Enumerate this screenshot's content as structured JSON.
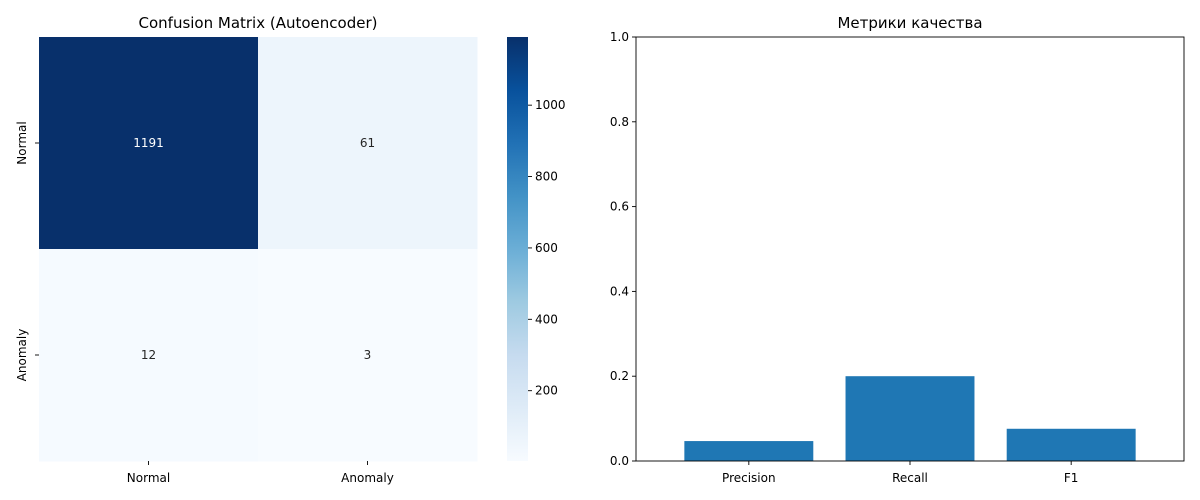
{
  "chart_data": [
    {
      "type": "heatmap",
      "title": "Confusion Matrix (Autoencoder)",
      "x_categories": [
        "Normal",
        "Anomaly"
      ],
      "y_categories": [
        "Normal",
        "Anomaly"
      ],
      "values": [
        [
          1191,
          61
        ],
        [
          12,
          3
        ]
      ],
      "colormap": "Blues",
      "colorbar": {
        "ticks": [
          200,
          400,
          600,
          800,
          1000
        ],
        "range": [
          3,
          1191
        ]
      }
    },
    {
      "type": "bar",
      "title": "Метрики качества",
      "categories": [
        "Precision",
        "Recall",
        "F1"
      ],
      "values": [
        0.047,
        0.2,
        0.076
      ],
      "ylim": [
        0,
        1
      ],
      "yticks": [
        "0.0",
        "0.2",
        "0.4",
        "0.6",
        "0.8",
        "1.0"
      ],
      "bar_color": "#1f77b4",
      "grid": false
    }
  ]
}
